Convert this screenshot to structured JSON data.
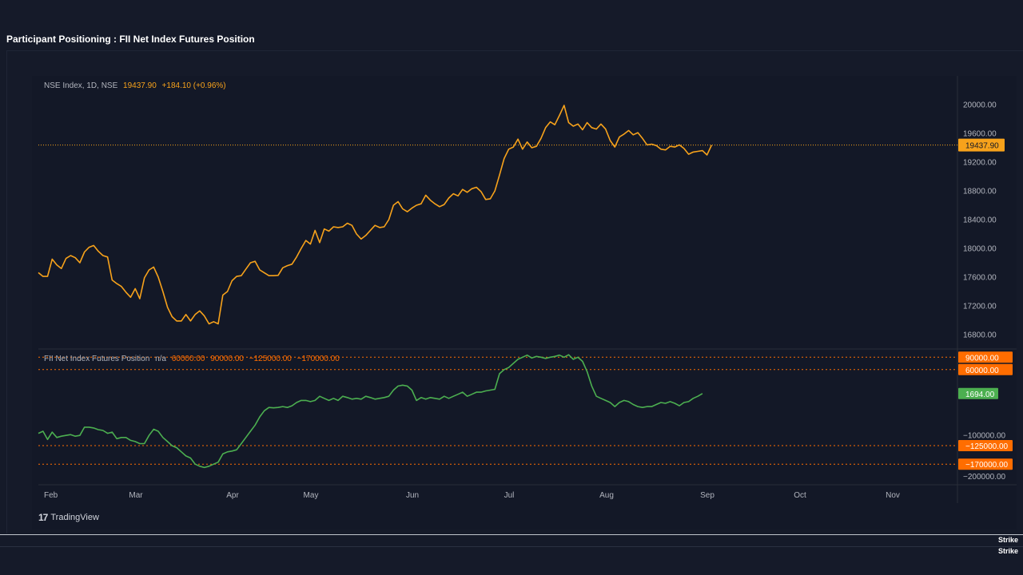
{
  "page": {
    "title": "Participant Positioning : FII Net Index Futures Position"
  },
  "branding": {
    "platform": "TradingView",
    "footer_brand_1": "Strike",
    "footer_brand_2": "Strike"
  },
  "colors": {
    "price": "#f7a21b",
    "fii": "#4caf50",
    "level": "#ff6d00",
    "background": "#131827"
  },
  "upper_legend": {
    "symbol": "NSE Index, 1D, NSE",
    "last": "19437.90",
    "change": "+184.10 (+0.96%)"
  },
  "lower_legend": {
    "name": "FII Net Index Futures Position",
    "current": "n/a",
    "levels": [
      "60000.00",
      "90000.00",
      "−125000.00",
      "−170000.00"
    ]
  },
  "chart_data": [
    {
      "type": "line",
      "name": "NSE Index",
      "x_start": "2023-02-01",
      "x_step": "1 trading day",
      "ylim": [
        16600,
        20400
      ],
      "y_ticks": [
        "20000.00",
        "19600.00",
        "19200.00",
        "18800.00",
        "18400.00",
        "18000.00",
        "17600.00",
        "17200.00",
        "16800.00"
      ],
      "y_tick_values": [
        20000,
        19600,
        19200,
        18800,
        18400,
        18000,
        17600,
        17200,
        16800
      ],
      "last_value_label": "19437.90",
      "last_value": 19437.9,
      "values": [
        17662,
        17610,
        17610,
        17850,
        17770,
        17720,
        17860,
        17900,
        17870,
        17800,
        17950,
        18015,
        18040,
        17960,
        17900,
        17880,
        17560,
        17510,
        17470,
        17390,
        17320,
        17440,
        17300,
        17590,
        17700,
        17740,
        17600,
        17400,
        17180,
        17050,
        16990,
        16990,
        17080,
        16990,
        17080,
        17130,
        17060,
        16950,
        16980,
        16950,
        17350,
        17400,
        17550,
        17610,
        17620,
        17710,
        17800,
        17820,
        17700,
        17660,
        17620,
        17620,
        17625,
        17730,
        17760,
        17780,
        17880,
        18000,
        18110,
        18060,
        18250,
        18080,
        18270,
        18240,
        18300,
        18290,
        18300,
        18350,
        18320,
        18200,
        18130,
        18180,
        18250,
        18320,
        18290,
        18300,
        18400,
        18600,
        18650,
        18550,
        18510,
        18560,
        18600,
        18620,
        18740,
        18670,
        18620,
        18580,
        18610,
        18700,
        18760,
        18730,
        18820,
        18780,
        18830,
        18850,
        18790,
        18680,
        18690,
        18800,
        19020,
        19250,
        19380,
        19410,
        19520,
        19380,
        19480,
        19400,
        19420,
        19530,
        19680,
        19760,
        19720,
        19850,
        19990,
        19750,
        19700,
        19730,
        19650,
        19750,
        19680,
        19660,
        19730,
        19660,
        19500,
        19410,
        19550,
        19590,
        19640,
        19580,
        19610,
        19530,
        19440,
        19450,
        19430,
        19380,
        19370,
        19420,
        19410,
        19440,
        19390,
        19310,
        19340,
        19350,
        19360,
        19300,
        19437.9
      ]
    },
    {
      "type": "line",
      "name": "FII Net Index Futures Position",
      "ylim": [
        -220000,
        110000
      ],
      "y_ticks": [
        "−100000.00",
        "−200000.00"
      ],
      "y_tick_values": [
        -100000,
        -200000
      ],
      "last_value_label": "1694.00",
      "last_value": 1694,
      "levels": [
        {
          "label": "90000.00",
          "value": 90000
        },
        {
          "label": "60000.00",
          "value": 60000
        },
        {
          "label": "−125000.00",
          "value": -125000
        },
        {
          "label": "−170000.00",
          "value": -170000
        }
      ],
      "values": [
        -95000,
        -90000,
        -110000,
        -92000,
        -105000,
        -102000,
        -100000,
        -98000,
        -102000,
        -100000,
        -80000,
        -80000,
        -82000,
        -86000,
        -88000,
        -95000,
        -92000,
        -108000,
        -105000,
        -105000,
        -112000,
        -115000,
        -120000,
        -120000,
        -100000,
        -85000,
        -90000,
        -105000,
        -115000,
        -125000,
        -130000,
        -140000,
        -150000,
        -155000,
        -170000,
        -175000,
        -178000,
        -175000,
        -170000,
        -165000,
        -145000,
        -140000,
        -138000,
        -135000,
        -120000,
        -105000,
        -90000,
        -75000,
        -55000,
        -40000,
        -32000,
        -33000,
        -32000,
        -30000,
        -32000,
        -28000,
        -20000,
        -15000,
        -15000,
        -18000,
        -15000,
        -5000,
        -10000,
        -15000,
        -10000,
        -15000,
        -5000,
        -8000,
        -12000,
        -10000,
        -12000,
        -5000,
        -8000,
        -12000,
        -10000,
        -8000,
        -5000,
        10000,
        20000,
        22000,
        20000,
        10000,
        -15000,
        -8000,
        -12000,
        -8000,
        -10000,
        -12000,
        -5000,
        -10000,
        -5000,
        0,
        5000,
        -5000,
        0,
        5000,
        5000,
        8000,
        10000,
        12000,
        50000,
        60000,
        65000,
        75000,
        85000,
        90000,
        95000,
        88000,
        92000,
        90000,
        87000,
        90000,
        92000,
        95000,
        90000,
        96000,
        85000,
        90000,
        80000,
        55000,
        20000,
        -5000,
        -10000,
        -15000,
        -20000,
        -30000,
        -20000,
        -15000,
        -18000,
        -25000,
        -30000,
        -32000,
        -30000,
        -30000,
        -25000,
        -20000,
        -22000,
        -18000,
        -22000,
        -28000,
        -20000,
        -18000,
        -10000,
        -5000,
        1694
      ]
    }
  ],
  "time_axis": {
    "labels": [
      "Feb",
      "Mar",
      "Apr",
      "May",
      "Jun",
      "Jul",
      "Aug",
      "Sep",
      "Oct",
      "Nov"
    ]
  }
}
